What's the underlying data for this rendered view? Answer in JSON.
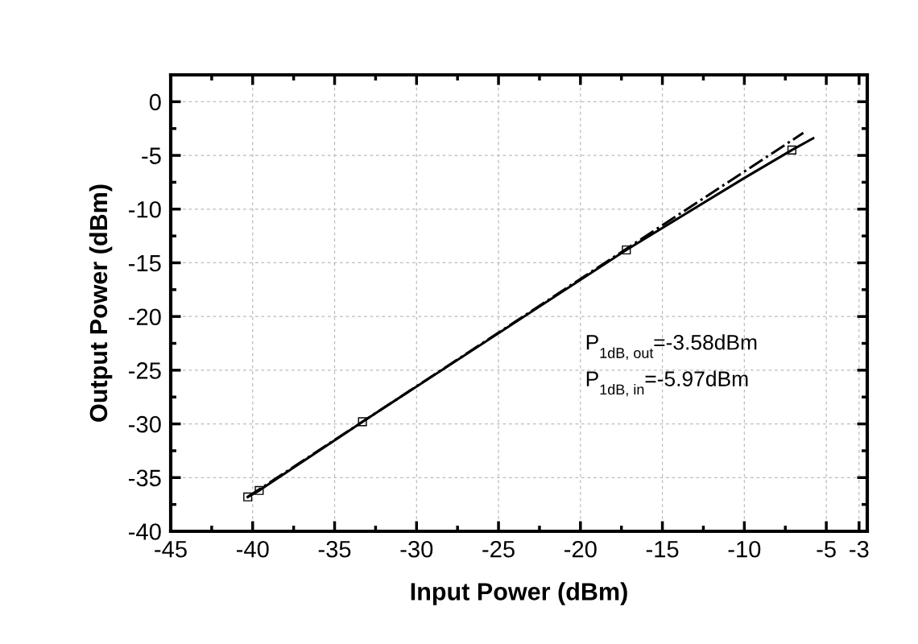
{
  "chart_data": {
    "type": "line",
    "xlabel": "Input Power (dBm)",
    "ylabel": "Output Power (dBm)",
    "series": [
      {
        "type": "line",
        "color": "#000000",
        "line_style": "dashdot",
        "x": [
          -40.3,
          -6.4
        ],
        "values": [
          -36.8,
          -2.9
        ]
      },
      {
        "color": "#000000",
        "line_style": "solid",
        "x": [
          -40.3,
          -39.6,
          -33.3,
          -17.2,
          -10,
          -7.1,
          -5.8
        ],
        "values": [
          -36.8,
          -36.2,
          -29.8,
          -13.8,
          -7.1,
          -4.5,
          -3.4
        ]
      },
      {
        "type": "scatter",
        "color": "#000000",
        "marker": "square",
        "x": [
          -40.3,
          -39.6,
          -33.3,
          -17.2,
          -7.1
        ],
        "values": [
          -36.8,
          -36.2,
          -29.8,
          -13.8,
          -4.5
        ]
      }
    ],
    "xlim": [
      -45,
      -2.5
    ],
    "ylim": [
      -40,
      2.5
    ],
    "xticks": [
      -45,
      {
        "value": -42.5,
        "label": null
      },
      -40,
      {
        "value": -37.5,
        "label": null
      },
      -35,
      {
        "value": -32.5,
        "label": null
      },
      -30,
      {
        "value": -27.5,
        "label": null
      },
      -25,
      {
        "value": -22.5,
        "label": null
      },
      -20,
      {
        "value": -17.5,
        "label": null
      },
      -15,
      {
        "value": -12.5,
        "label": null
      },
      -10,
      {
        "value": -7.5,
        "label": null
      },
      -5,
      -3
    ],
    "yticks": [
      -40,
      {
        "value": -37.5,
        "label": null
      },
      -35,
      {
        "value": -32.5,
        "label": null
      },
      -30,
      {
        "value": -27.5,
        "label": null
      },
      -25,
      {
        "value": -22.5,
        "label": null
      },
      -20,
      {
        "value": -17.5,
        "label": null
      },
      -15,
      {
        "value": -12.5,
        "label": null
      },
      -10,
      {
        "value": -7.5,
        "label": null
      },
      -5,
      {
        "value": -2.5,
        "label": null
      },
      0
    ],
    "grid": true,
    "annotations": [
      "P$_{1dB, out}$=-3.58dBm",
      "P$_{1dB, in}$=-5.97dBm"
    ]
  }
}
